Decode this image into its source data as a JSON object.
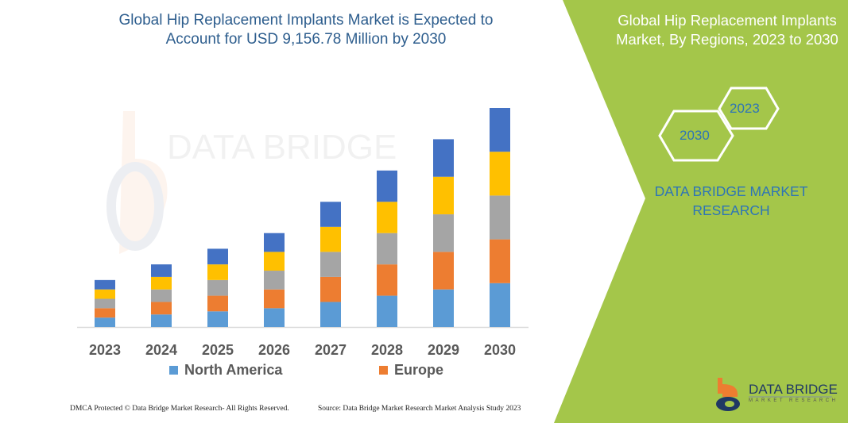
{
  "title": "Global Hip Replacement Implants Market is Expected to Account for USD 9,156.78 Million by 2030",
  "right_panel": {
    "title": "Global Hip Replacement Implants Market, By Regions, 2023 to 2030",
    "hex_year_1": "2023",
    "hex_year_2": "2030",
    "brand": "DATA BRIDGE MARKET RESEARCH",
    "logo_text": "DATA BRIDGE",
    "logo_sub": "MARKET RESEARCH",
    "panel_color": "#A4C64A"
  },
  "watermark": {
    "text": "DATA BRIDGE",
    "sub": "MARKET RESEARCH"
  },
  "footer": {
    "left": "DMCA Protected © Data Bridge Market Research-  All Rights Reserved.",
    "right": "Source: Data Bridge Market Research  Market Analysis Study 2023"
  },
  "chart_data": {
    "type": "bar",
    "stacked": true,
    "categories": [
      "2023",
      "2024",
      "2025",
      "2026",
      "2027",
      "2028",
      "2029",
      "2030"
    ],
    "series": [
      {
        "name": "North America",
        "color": "#5B9BD5",
        "values": [
          3,
          4,
          5,
          6,
          8,
          10,
          12,
          14
        ]
      },
      {
        "name": "Europe",
        "color": "#ED7D31",
        "values": [
          3,
          4,
          5,
          6,
          8,
          10,
          12,
          14
        ]
      },
      {
        "color": "#A5A5A5",
        "values": [
          3,
          4,
          5,
          6,
          8,
          10,
          12,
          14
        ]
      },
      {
        "color": "#FFC000",
        "values": [
          3,
          4,
          5,
          6,
          8,
          10,
          12,
          14
        ]
      },
      {
        "color": "#4472C4",
        "values": [
          3,
          4,
          5,
          6,
          8,
          10,
          12,
          14
        ]
      }
    ],
    "y_axis_shown": false,
    "grid": false,
    "legend_position": "bottom"
  }
}
